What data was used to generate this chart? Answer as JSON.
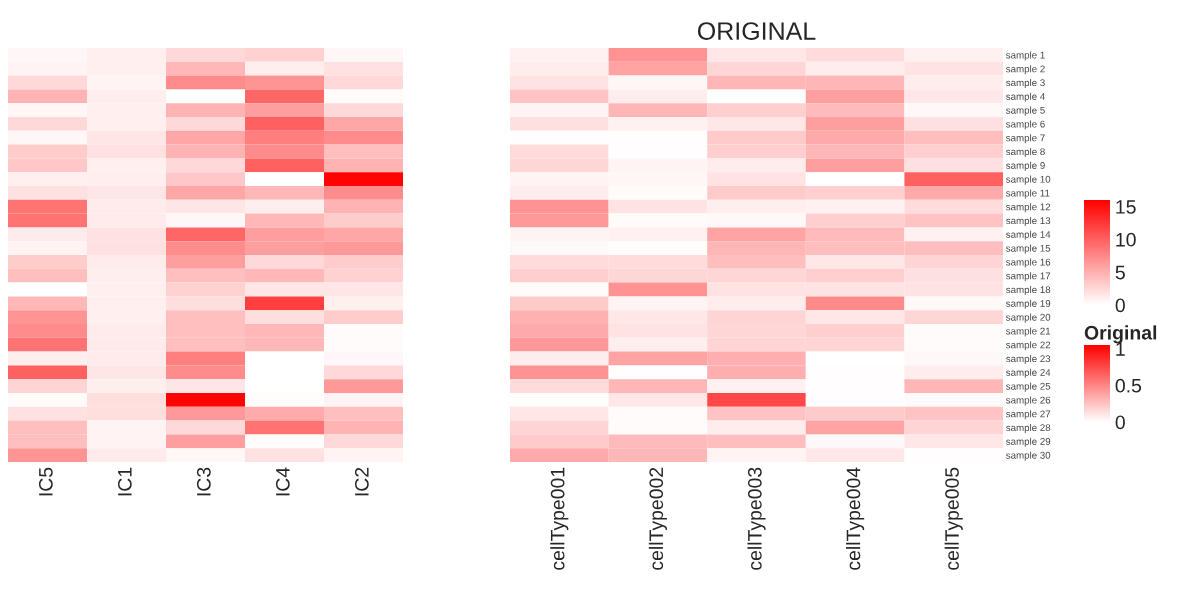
{
  "chart_data": [
    {
      "type": "heatmap",
      "categories": [
        "IC5",
        "IC1",
        "IC3",
        "IC4",
        "IC2"
      ],
      "y_categories": [
        null,
        null,
        null,
        null,
        null,
        null,
        null,
        null,
        null,
        null,
        null,
        null,
        null,
        null,
        null,
        null,
        null,
        null,
        null,
        null,
        null,
        null,
        null,
        null,
        null,
        null,
        null,
        null,
        null,
        null
      ],
      "tick_labels": "x",
      "cells": [
        [
          0.5,
          1,
          2.4,
          2.9,
          0.5
        ],
        [
          0.8,
          1,
          4.5,
          1.1,
          1.9
        ],
        [
          2.4,
          0.8,
          7.2,
          6.7,
          2.4
        ],
        [
          4.8,
          1.1,
          0,
          9.6,
          0.3
        ],
        [
          0.6,
          1,
          4.8,
          6.1,
          2.4
        ],
        [
          2.4,
          1,
          2.4,
          9.9,
          5.6
        ],
        [
          0.5,
          1.6,
          5.6,
          8,
          7.2
        ],
        [
          3.2,
          1.9,
          4.8,
          7.2,
          4
        ],
        [
          3.5,
          1,
          2.4,
          9.9,
          4.8
        ],
        [
          1,
          1.1,
          3.5,
          0,
          15.8
        ],
        [
          1.9,
          1.6,
          5.6,
          4.5,
          7.2
        ],
        [
          8.8,
          1.3,
          1.6,
          1.1,
          4.8
        ],
        [
          8.8,
          1.3,
          0.5,
          4.5,
          3.2
        ],
        [
          1.3,
          1.9,
          9.6,
          6.1,
          5.6
        ],
        [
          0.8,
          1.9,
          7.2,
          6.1,
          6.4
        ],
        [
          3.2,
          1.3,
          6.1,
          2.4,
          3.2
        ],
        [
          4,
          1.1,
          4,
          4.5,
          2.9
        ],
        [
          0,
          1,
          2.9,
          1.6,
          1.6
        ],
        [
          4.5,
          1,
          2.1,
          12,
          1
        ],
        [
          6.7,
          1,
          4,
          2.1,
          3.2
        ],
        [
          7.2,
          1.3,
          4,
          4.5,
          0.3
        ],
        [
          8.8,
          1.3,
          4,
          4.5,
          0.3
        ],
        [
          1.1,
          1.3,
          8,
          0,
          0.5
        ],
        [
          9.9,
          1.6,
          7.2,
          0,
          2.4
        ],
        [
          2.7,
          1.1,
          1.6,
          0,
          6.4
        ],
        [
          0.3,
          2.1,
          15.8,
          0.2,
          0.8
        ],
        [
          1.9,
          2.1,
          6.4,
          5.3,
          4
        ],
        [
          4,
          0.8,
          2.4,
          8.8,
          4.8
        ],
        [
          4,
          0.8,
          6.1,
          0.2,
          2.4
        ],
        [
          6.7,
          1.3,
          0.6,
          1.9,
          0.8
        ]
      ],
      "clim": [
        0,
        16
      ],
      "cticks": [
        0,
        5,
        10,
        15
      ]
    },
    {
      "type": "heatmap",
      "title": "ORIGINAL",
      "clabel": "Original",
      "categories": [
        "cellType001",
        "cellType002",
        "cellType003",
        "cellType004",
        "cellType005"
      ],
      "y_categories": [
        "sample 1",
        "sample 2",
        "sample 3",
        "sample 4",
        "sample 5",
        "sample 6",
        "sample 7",
        "sample 8",
        "sample 9",
        "sample 10",
        "sample 11",
        "sample 12",
        "sample 13",
        "sample 14",
        "sample 15",
        "sample 16",
        "sample 17",
        "sample 18",
        "sample 19",
        "sample 20",
        "sample 21",
        "sample 22",
        "sample 23",
        "sample 24",
        "sample 25",
        "sample 26",
        "sample 27",
        "sample 28",
        "sample 29",
        "sample 30"
      ],
      "cells": [
        [
          0.06,
          0.45,
          0.1,
          0.15,
          0.06
        ],
        [
          0.08,
          0.38,
          0.17,
          0.08,
          0.12
        ],
        [
          0.12,
          0.04,
          0.3,
          0.3,
          0.08
        ],
        [
          0.25,
          0.08,
          0,
          0.4,
          0.1
        ],
        [
          0.05,
          0.3,
          0.2,
          0.28,
          0.03
        ],
        [
          0.13,
          0.06,
          0.1,
          0.4,
          0.13
        ],
        [
          0.01,
          0.01,
          0.22,
          0.35,
          0.27
        ],
        [
          0.15,
          0.01,
          0.2,
          0.3,
          0.2
        ],
        [
          0.17,
          0.05,
          0.08,
          0.4,
          0.13
        ],
        [
          0.05,
          0.04,
          0.12,
          0,
          0.65
        ],
        [
          0.08,
          0.02,
          0.22,
          0.2,
          0.35
        ],
        [
          0.45,
          0.12,
          0.07,
          0.06,
          0.15
        ],
        [
          0.42,
          0.02,
          0.03,
          0.2,
          0.25
        ],
        [
          0.05,
          0.06,
          0.38,
          0.28,
          0.06
        ],
        [
          0.03,
          0.01,
          0.3,
          0.27,
          0.27
        ],
        [
          0.15,
          0.15,
          0.27,
          0.1,
          0.18
        ],
        [
          0.2,
          0.17,
          0.17,
          0.2,
          0.13
        ],
        [
          0.02,
          0.45,
          0.12,
          0.12,
          0.12
        ],
        [
          0.22,
          0.05,
          0.08,
          0.48,
          0.03
        ],
        [
          0.32,
          0.1,
          0.18,
          0.1,
          0.17
        ],
        [
          0.35,
          0.12,
          0.17,
          0.2,
          0.02
        ],
        [
          0.42,
          0.07,
          0.18,
          0.18,
          0.02
        ],
        [
          0.08,
          0.38,
          0.33,
          0,
          0.03
        ],
        [
          0.45,
          0.01,
          0.33,
          0.01,
          0.08
        ],
        [
          0.15,
          0.3,
          0.06,
          0.01,
          0.3
        ],
        [
          0.01,
          0.1,
          0.75,
          0.01,
          0.02
        ],
        [
          0.1,
          0.02,
          0.25,
          0.22,
          0.25
        ],
        [
          0.18,
          0.02,
          0.08,
          0.38,
          0.18
        ],
        [
          0.22,
          0.28,
          0.27,
          0.03,
          0.1
        ],
        [
          0.35,
          0.3,
          0.05,
          0.1,
          0.01
        ]
      ],
      "clim": [
        0,
        1.05
      ],
      "cticks": [
        0,
        0.5,
        1
      ]
    }
  ]
}
